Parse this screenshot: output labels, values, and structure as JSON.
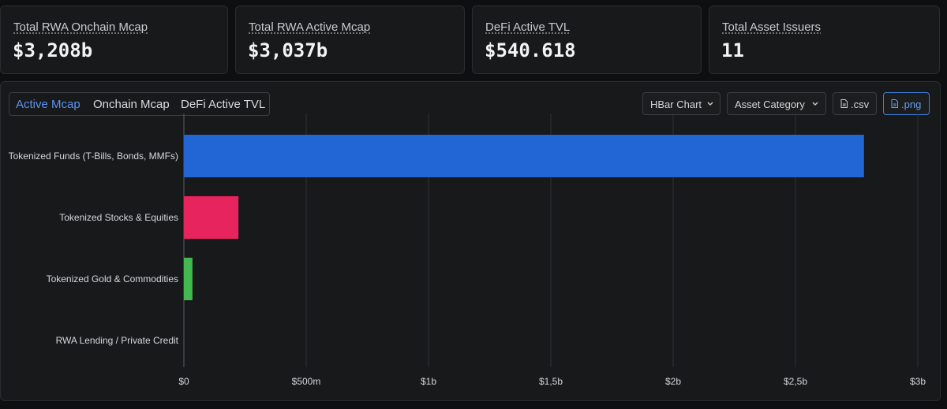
{
  "stats": [
    {
      "label": "Total RWA Onchain Mcap",
      "value": "$3,208b"
    },
    {
      "label": "Total RWA Active Mcap",
      "value": "$3,037b"
    },
    {
      "label": "DeFi Active TVL",
      "value": "$540.618"
    },
    {
      "label": "Total Asset Issuers",
      "value": "11"
    }
  ],
  "tabs": [
    {
      "label": "Active Mcap",
      "active": true
    },
    {
      "label": "Onchain Mcap",
      "active": false
    },
    {
      "label": "DeFi Active TVL",
      "active": false
    }
  ],
  "controls": {
    "chart_type": "HBar Chart",
    "group_by": "Asset Category",
    "csv_label": ".csv",
    "png_label": ".png",
    "chevron_icon": "chevron-down-icon",
    "file_icon": "file-icon"
  },
  "chart_data": {
    "type": "bar",
    "orientation": "horizontal",
    "categories": [
      "Tokenized Funds (T-Bills, Bonds, MMFs)",
      "Tokenized Stocks & Equities",
      "Tokenized Gold & Commodities",
      "RWA Lending / Private Credit"
    ],
    "values": [
      2780000000,
      223000000,
      35000000,
      0
    ],
    "colors": [
      "#2266d6",
      "#e8245f",
      "#43b84f",
      "#8a8f95"
    ],
    "xlim": [
      0,
      3000000000
    ],
    "ticks": [
      0,
      500000000,
      1000000000,
      1500000000,
      2000000000,
      2500000000,
      3000000000
    ],
    "tick_labels": [
      "$0",
      "$500m",
      "$1b",
      "$1,5b",
      "$2b",
      "$2,5b",
      "$3b"
    ],
    "grid": true,
    "title": "",
    "xlabel": "",
    "ylabel": ""
  }
}
